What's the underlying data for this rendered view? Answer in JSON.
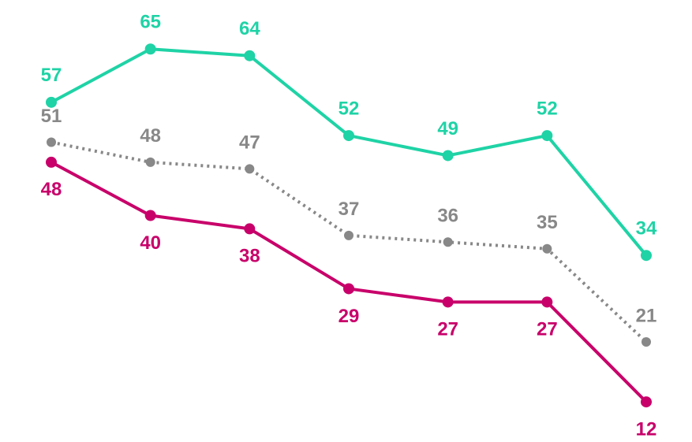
{
  "chart_data": {
    "type": "line",
    "categories": [
      null,
      null,
      null,
      null,
      null,
      null,
      null
    ],
    "ylim": [
      10,
      70
    ],
    "series": [
      {
        "color": "#1fd3a6",
        "values": [
          57,
          65,
          64,
          52,
          49,
          52,
          34
        ]
      },
      {
        "color": "#888888",
        "style": "dotted",
        "values": [
          51,
          48,
          47,
          37,
          36,
          35,
          21
        ]
      },
      {
        "color": "#c8006a",
        "values": [
          48,
          40,
          38,
          29,
          27,
          27,
          12
        ]
      }
    ]
  }
}
